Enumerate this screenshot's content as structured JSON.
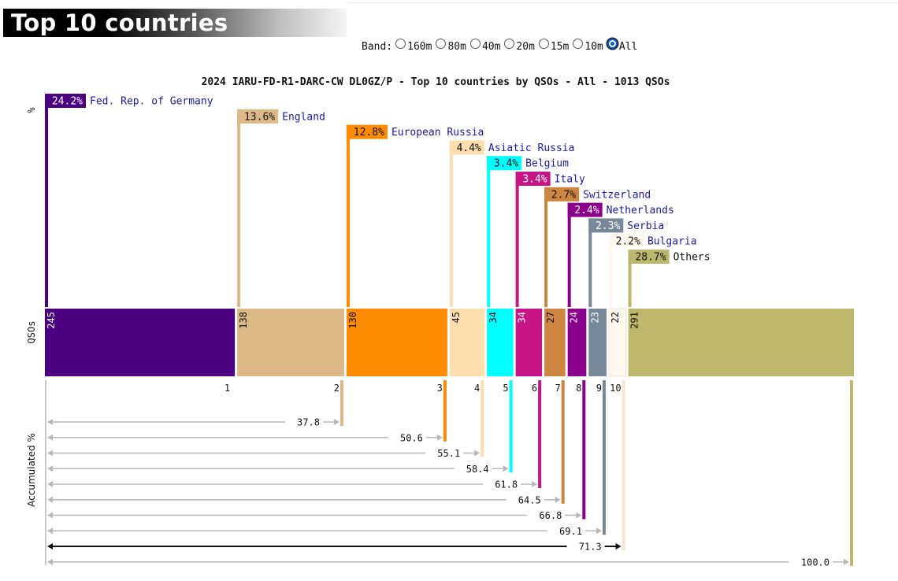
{
  "header": {
    "title": "Top 10 countries"
  },
  "band_selector": {
    "label": "Band:",
    "options": [
      "160m",
      "80m",
      "40m",
      "20m",
      "15m",
      "10m",
      "All"
    ],
    "selected": "All"
  },
  "chart_data": {
    "type": "bar",
    "title": "2024 IARU-FD-R1-DARC-CW DL0GZ/P - Top 10 countries by QSOs - All - 1013 QSOs",
    "panel_labels": {
      "percent": "%",
      "qsos": "QSOs",
      "accumulated": "Accumulated %"
    },
    "total_qsos": 1013,
    "items": [
      {
        "rank": "1",
        "name": "Fed. Rep. of Germany",
        "qsos": 245,
        "pct": "24.2%",
        "cum": "",
        "color": "#4b0082",
        "pct_text": "#ffffff"
      },
      {
        "rank": "2",
        "name": "England",
        "qsos": 138,
        "pct": "13.6%",
        "cum": "37.8",
        "color": "#deb887",
        "pct_text": "#111111"
      },
      {
        "rank": "3",
        "name": "European Russia",
        "qsos": 130,
        "pct": "12.8%",
        "cum": "50.6",
        "color": "#ff8c00",
        "pct_text": "#111111"
      },
      {
        "rank": "4",
        "name": "Asiatic Russia",
        "qsos": 45,
        "pct": "4.4%",
        "cum": "55.1",
        "color": "#ffdead",
        "pct_text": "#111111"
      },
      {
        "rank": "5",
        "name": "Belgium",
        "qsos": 34,
        "pct": "3.4%",
        "cum": "58.4",
        "color": "#00ffff",
        "pct_text": "#111111"
      },
      {
        "rank": "6",
        "name": "Italy",
        "qsos": 34,
        "pct": "3.4%",
        "cum": "61.8",
        "color": "#c71585",
        "pct_text": "#ffffff"
      },
      {
        "rank": "7",
        "name": "Switzerland",
        "qsos": 27,
        "pct": "2.7%",
        "cum": "64.5",
        "color": "#cd853f",
        "pct_text": "#111111"
      },
      {
        "rank": "8",
        "name": "Netherlands",
        "qsos": 24,
        "pct": "2.4%",
        "cum": "66.8",
        "color": "#8b008b",
        "pct_text": "#ffffff"
      },
      {
        "rank": "9",
        "name": "Serbia",
        "qsos": 23,
        "pct": "2.3%",
        "cum": "69.1",
        "color": "#778899",
        "pct_text": "#ffffff"
      },
      {
        "rank": "10",
        "name": "Bulgaria",
        "qsos": 22,
        "pct": "2.2%",
        "cum": "71.3",
        "color": "#fff8ee",
        "pct_text": "#111111"
      },
      {
        "rank": "",
        "name": "Others",
        "qsos": 291,
        "pct": "28.7%",
        "cum": "100.0",
        "color": "#bdb76b",
        "pct_text": "#111111"
      }
    ],
    "label_color": "#1a1aa6",
    "others_label_color": "#111111"
  }
}
